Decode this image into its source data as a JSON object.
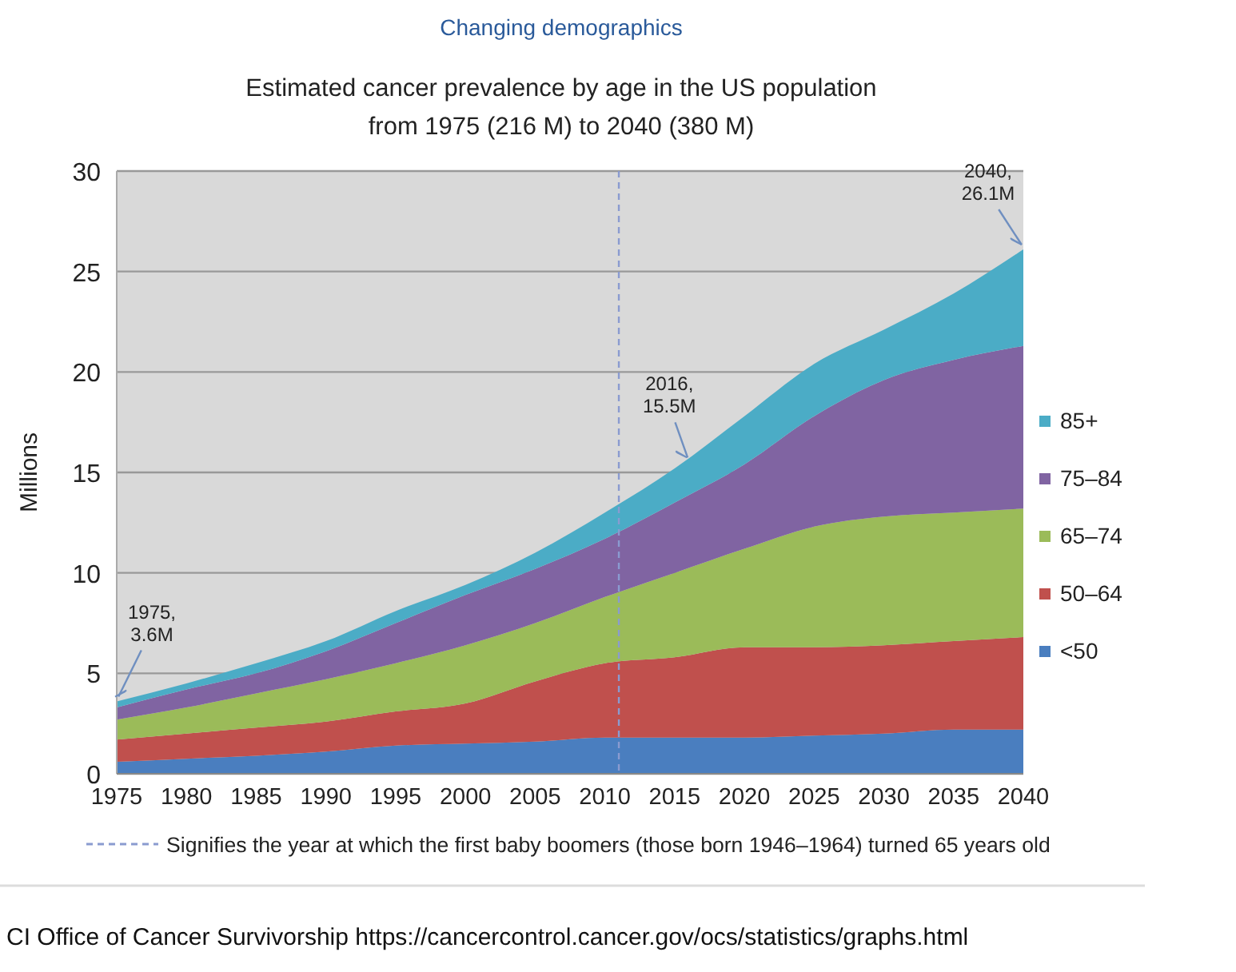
{
  "chart_data": {
    "type": "area",
    "stacked": true,
    "title": "Changing demographics",
    "subtitle": "Estimated cancer prevalence by age in the US population\nfrom 1975 (216 M) to 2040 (380 M)",
    "ylabel": "Millions",
    "x": [
      1975,
      1980,
      1985,
      1990,
      1995,
      2000,
      2005,
      2010,
      2015,
      2020,
      2025,
      2030,
      2035,
      2040
    ],
    "xlim": [
      1975,
      2040
    ],
    "xticks": [
      1975,
      1980,
      1985,
      1990,
      1995,
      2000,
      2005,
      2010,
      2015,
      2020,
      2025,
      2030,
      2035,
      2040
    ],
    "ylim": [
      0,
      30
    ],
    "yticks": [
      0,
      5,
      10,
      15,
      20,
      25,
      30
    ],
    "grid": "y",
    "legend": "right",
    "series": [
      {
        "name": "<50",
        "color": "#4a7ebf",
        "values": [
          0.6,
          0.75,
          0.9,
          1.1,
          1.4,
          1.5,
          1.6,
          1.8,
          1.8,
          1.8,
          1.9,
          2.0,
          2.2,
          2.2
        ]
      },
      {
        "name": "50–64",
        "color": "#c0504d",
        "values": [
          1.1,
          1.25,
          1.4,
          1.5,
          1.7,
          2.0,
          3.0,
          3.7,
          4.0,
          4.5,
          4.4,
          4.4,
          4.4,
          4.6
        ]
      },
      {
        "name": "65–74",
        "color": "#9bbb59",
        "values": [
          1.0,
          1.3,
          1.7,
          2.1,
          2.4,
          2.9,
          2.9,
          3.3,
          4.2,
          4.9,
          6.0,
          6.4,
          6.4,
          6.4
        ]
      },
      {
        "name": "75–84",
        "color": "#8064a2",
        "values": [
          0.6,
          0.9,
          1.0,
          1.4,
          2.0,
          2.5,
          2.7,
          2.9,
          3.5,
          4.2,
          5.5,
          6.8,
          7.6,
          8.1
        ]
      },
      {
        "name": "85+",
        "color": "#4bacc6",
        "values": [
          0.3,
          0.3,
          0.5,
          0.5,
          0.6,
          0.5,
          0.8,
          1.3,
          1.7,
          2.4,
          2.6,
          2.5,
          3.3,
          4.8
        ]
      }
    ],
    "ref_lines": [
      {
        "axis": "x",
        "value": 2011,
        "color": "#8a9bd0",
        "line_style": "dashed"
      }
    ],
    "annotations": [
      "Signifies the year at which the first baby boomers (those born 1946–1964) turned 65 years old",
      {
        "text": "1975,\n3.6M",
        "x": 1975,
        "y": 3.6
      },
      {
        "text": "2016,\n15.5M",
        "x": 2016,
        "y": 15.5
      },
      {
        "text": "2040,\n26.1M",
        "x": 2040,
        "y": 26.1
      },
      "CI Office of Cancer Survivorship https://cancercontrol.cancer.gov/ocs/statistics/graphs.html"
    ]
  }
}
